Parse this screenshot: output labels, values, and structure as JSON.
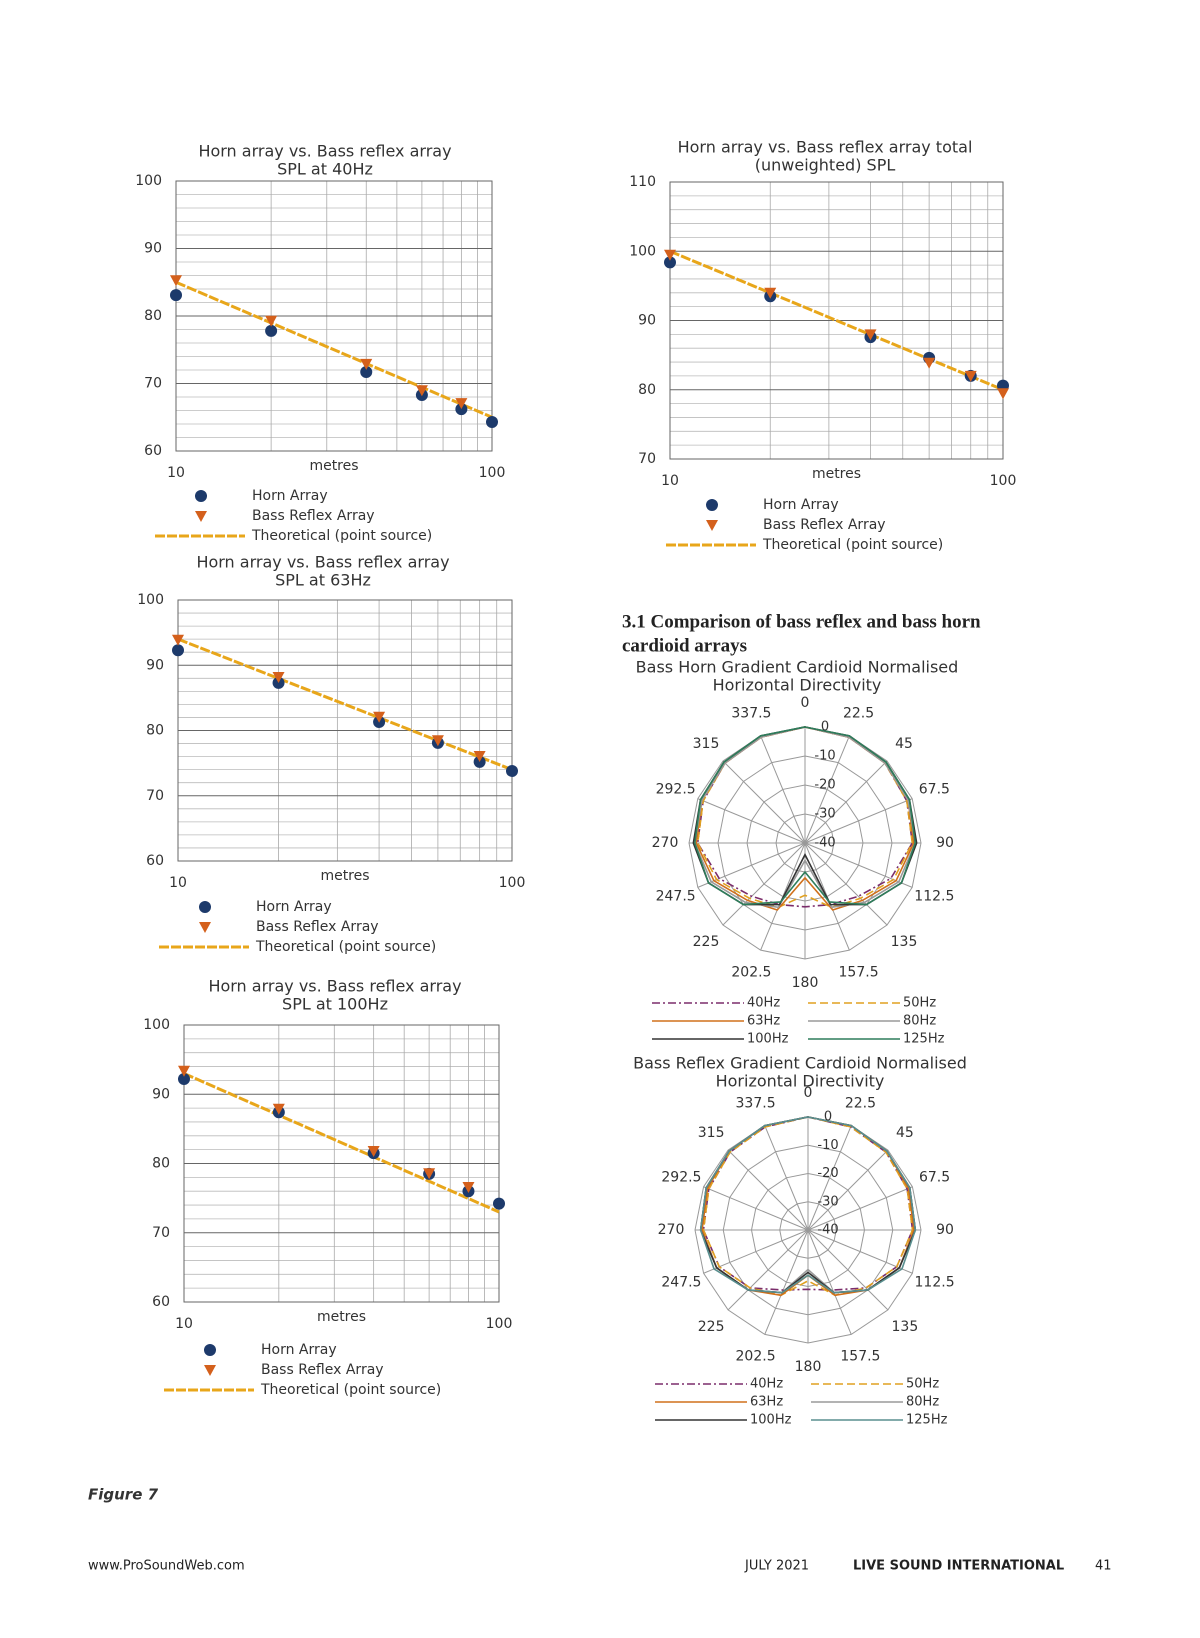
{
  "chart_data": [
    {
      "type": "scatter",
      "title": "Horn array vs. Bass reflex array",
      "subtitle": "SPL at 40Hz",
      "x_label": "metres",
      "xscale": "log",
      "xlim": [
        10,
        100
      ],
      "xticks": [
        10,
        100
      ],
      "minor_xticks": [
        20,
        30,
        40,
        50,
        60,
        70,
        80,
        90
      ],
      "ylim": [
        60,
        100
      ],
      "yticks": [
        60,
        70,
        80,
        90,
        100
      ],
      "minor_yticks": [
        62,
        64,
        66,
        68,
        72,
        74,
        76,
        78,
        82,
        84,
        86,
        88,
        92,
        94,
        96,
        98
      ],
      "grid": true,
      "x": [
        10,
        20,
        40,
        60,
        80,
        100
      ],
      "series": [
        {
          "name": "Horn Array",
          "marker": "circle",
          "color": "#1d3a6b",
          "values": [
            83.1,
            77.8,
            71.7,
            68.3,
            66.2,
            64.3
          ]
        },
        {
          "name": "Bass Reflex Array",
          "marker": "triangle",
          "color": "#d4601c",
          "values": [
            85.3,
            79.3,
            72.9,
            69,
            67.1,
            null
          ]
        },
        {
          "name": "Theoretical (point source)",
          "marker": "line",
          "color": "#e8a61a",
          "x": [
            10,
            100
          ],
          "values": [
            85,
            65
          ]
        }
      ]
    },
    {
      "type": "scatter",
      "title": "Horn array vs. Bass reflex array total",
      "subtitle": "(unweighted) SPL",
      "x_label": "metres",
      "xscale": "log",
      "xlim": [
        10,
        100
      ],
      "xticks": [
        10,
        100
      ],
      "minor_xticks": [
        20,
        30,
        40,
        50,
        60,
        70,
        80,
        90
      ],
      "ylim": [
        70,
        110
      ],
      "yticks": [
        70,
        80,
        90,
        100,
        110
      ],
      "minor_yticks": [
        72,
        74,
        76,
        78,
        82,
        84,
        86,
        88,
        92,
        94,
        96,
        98,
        102,
        104,
        106,
        108
      ],
      "grid": true,
      "x": [
        10,
        20,
        40,
        60,
        80,
        100
      ],
      "series": [
        {
          "name": "Horn Array",
          "marker": "circle",
          "color": "#1d3a6b",
          "values": [
            98.4,
            93.5,
            87.6,
            84.6,
            82,
            80.6
          ]
        },
        {
          "name": "Bass Reflex Array",
          "marker": "triangle",
          "color": "#d4601c",
          "values": [
            99.5,
            94,
            88,
            83.9,
            82,
            79.5
          ]
        },
        {
          "name": "Theoretical (point source)",
          "marker": "line",
          "color": "#e8a61a",
          "x": [
            10,
            100
          ],
          "values": [
            100,
            80
          ]
        }
      ]
    },
    {
      "type": "scatter",
      "title": "Horn array vs. Bass reflex array",
      "subtitle": "SPL at 63Hz",
      "x_label": "metres",
      "xscale": "log",
      "xlim": [
        10,
        100
      ],
      "xticks": [
        10,
        100
      ],
      "minor_xticks": [
        20,
        30,
        40,
        50,
        60,
        70,
        80,
        90
      ],
      "ylim": [
        60,
        100
      ],
      "yticks": [
        60,
        70,
        80,
        90,
        100
      ],
      "minor_yticks": [
        62,
        64,
        66,
        68,
        72,
        74,
        76,
        78,
        82,
        84,
        86,
        88,
        92,
        94,
        96,
        98
      ],
      "grid": true,
      "x": [
        10,
        20,
        40,
        60,
        80,
        100
      ],
      "series": [
        {
          "name": "Horn Array",
          "marker": "circle",
          "color": "#1d3a6b",
          "values": [
            92.3,
            87.3,
            81.3,
            78.1,
            75.2,
            73.8
          ]
        },
        {
          "name": "Bass Reflex Array",
          "marker": "triangle",
          "color": "#d4601c",
          "values": [
            93.9,
            88.2,
            82.1,
            78.5,
            76.1,
            null
          ]
        },
        {
          "name": "Theoretical (point source)",
          "marker": "line",
          "color": "#e8a61a",
          "x": [
            10,
            100
          ],
          "values": [
            94,
            74
          ]
        }
      ]
    },
    {
      "type": "scatter",
      "title": "Horn array vs. Bass reflex array",
      "subtitle": "SPL at 100Hz",
      "x_label": "metres",
      "xscale": "log",
      "xlim": [
        10,
        100
      ],
      "xticks": [
        10,
        100
      ],
      "minor_xticks": [
        20,
        30,
        40,
        50,
        60,
        70,
        80,
        90
      ],
      "ylim": [
        60,
        100
      ],
      "yticks": [
        60,
        70,
        80,
        90,
        100
      ],
      "minor_yticks": [
        62,
        64,
        66,
        68,
        72,
        74,
        76,
        78,
        82,
        84,
        86,
        88,
        92,
        94,
        96,
        98
      ],
      "grid": true,
      "x": [
        10,
        20,
        40,
        60,
        80,
        100
      ],
      "series": [
        {
          "name": "Horn Array",
          "marker": "circle",
          "color": "#1d3a6b",
          "values": [
            92.2,
            87.4,
            81.5,
            78.5,
            76,
            74.2
          ]
        },
        {
          "name": "Bass Reflex Array",
          "marker": "triangle",
          "color": "#d4601c",
          "values": [
            93.4,
            87.9,
            81.8,
            78.6,
            76.6,
            null
          ]
        },
        {
          "name": "Theoretical (point source)",
          "marker": "line",
          "color": "#e8a61a",
          "x": [
            10,
            100
          ],
          "values": [
            93,
            73
          ]
        }
      ]
    },
    {
      "type": "polar",
      "title": "Bass Horn Gradient Cardioid Normalised",
      "subtitle": "Horizontal Directivity",
      "angles": [
        0,
        22.5,
        45,
        67.5,
        90,
        112.5,
        135,
        157.5,
        180,
        202.5,
        225,
        247.5,
        270,
        292.5,
        315,
        337.5
      ],
      "rlim": [
        -40,
        0
      ],
      "rticks": [
        0,
        -10,
        -20,
        -30,
        -40
      ],
      "series": [
        {
          "name": "40Hz",
          "color": "#7b2d6b",
          "dash": "dashdot",
          "values": [
            0,
            -0.5,
            -1,
            -2,
            -3,
            -8,
            -14,
            -17,
            -18,
            -17,
            -14,
            -8,
            -3,
            -2,
            -1,
            -0.5
          ]
        },
        {
          "name": "50Hz",
          "color": "#e0a020",
          "dash": "dashed",
          "values": [
            0,
            -0.5,
            -1,
            -2,
            -3,
            -7,
            -13,
            -16,
            -22,
            -16,
            -13,
            -7,
            -3,
            -2,
            -1,
            -0.5
          ]
        },
        {
          "name": "63Hz",
          "color": "#d0701c",
          "dash": "solid",
          "values": [
            0,
            -0.5,
            -1,
            -1.5,
            -2.5,
            -6,
            -12,
            -15,
            -28,
            -15,
            -12,
            -6,
            -2.5,
            -1.5,
            -1,
            -0.5
          ]
        },
        {
          "name": "80Hz",
          "color": "#9a9a9a",
          "dash": "solid",
          "values": [
            0,
            -0.5,
            -1,
            -1.5,
            -2,
            -5,
            -11,
            -16,
            -34,
            -16,
            -11,
            -5,
            -2,
            -1.5,
            -1,
            -0.5
          ]
        },
        {
          "name": "100Hz",
          "color": "#333333",
          "dash": "solid",
          "values": [
            0,
            0,
            -0.5,
            -1,
            -1.5,
            -4,
            -10,
            -17,
            -36,
            -17,
            -10,
            -4,
            -1.5,
            -1,
            -0.5,
            0
          ]
        },
        {
          "name": "125Hz",
          "color": "#2e7d5b",
          "dash": "solid",
          "values": [
            0,
            0,
            -0.5,
            -1,
            -2,
            -4,
            -10,
            -18,
            -30,
            -18,
            -10,
            -4,
            -2,
            -1,
            -0.5,
            0
          ]
        }
      ]
    },
    {
      "type": "polar",
      "title": "Bass Reflex Gradient Cardioid Normalised",
      "subtitle": "Horizontal Directivity",
      "angles": [
        0,
        22.5,
        45,
        67.5,
        90,
        112.5,
        135,
        157.5,
        180,
        202.5,
        225,
        247.5,
        270,
        292.5,
        315,
        337.5
      ],
      "rlim": [
        -40,
        0
      ],
      "rticks": [
        0,
        -10,
        -20,
        -30,
        -40
      ],
      "series": [
        {
          "name": "40Hz",
          "color": "#7b2d6b",
          "dash": "dashdot",
          "values": [
            0,
            -0.5,
            -1,
            -2,
            -3,
            -6,
            -11,
            -17,
            -19,
            -17,
            -11,
            -6,
            -3,
            -2,
            -1,
            -0.5
          ]
        },
        {
          "name": "50Hz",
          "color": "#e0a020",
          "dash": "dashed",
          "values": [
            0,
            -0.5,
            -1,
            -2,
            -3,
            -6,
            -11,
            -15,
            -22,
            -15,
            -11,
            -6,
            -3,
            -2,
            -1,
            -0.5
          ]
        },
        {
          "name": "63Hz",
          "color": "#d0701c",
          "dash": "solid",
          "values": [
            0,
            0,
            -0.5,
            -1.5,
            -2.5,
            -5,
            -10,
            -15,
            -24,
            -15,
            -10,
            -5,
            -2.5,
            -1.5,
            -0.5,
            0
          ]
        },
        {
          "name": "80Hz",
          "color": "#9a9a9a",
          "dash": "solid",
          "values": [
            0,
            0,
            -0.5,
            -1,
            -2,
            -5,
            -10,
            -16,
            -26,
            -16,
            -10,
            -5,
            -2,
            -1,
            -0.5,
            0
          ]
        },
        {
          "name": "100Hz",
          "color": "#333333",
          "dash": "solid",
          "values": [
            0,
            0,
            -0.5,
            -1,
            -2,
            -5,
            -10,
            -16,
            -25,
            -16,
            -10,
            -5,
            -2,
            -1,
            -0.5,
            0
          ]
        },
        {
          "name": "125Hz",
          "color": "#5a8f8f",
          "dash": "solid",
          "values": [
            0,
            0,
            -0.5,
            -1,
            -2,
            -4,
            -10,
            -16,
            -24,
            -16,
            -10,
            -4,
            -2,
            -1,
            -0.5,
            0
          ]
        }
      ]
    }
  ],
  "section_heading": [
    "3.1 Comparison of bass reflex and bass horn",
    "cardioid arrays"
  ],
  "figure_label": "Figure 7",
  "footer": {
    "url": "www.ProSoundWeb.com",
    "date": "JULY 2021",
    "publication": "LIVE SOUND INTERNATIONAL",
    "page": "41"
  }
}
